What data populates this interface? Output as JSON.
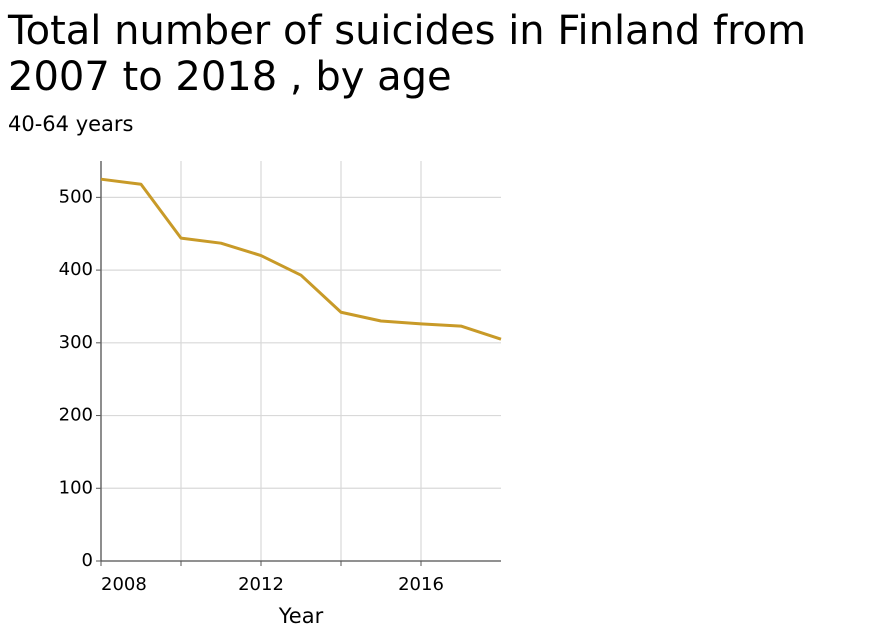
{
  "chart_data": {
    "type": "line",
    "title": "Total number of suicides in Finland from 2007 to 2018 , by age",
    "subtitle": "40-64 years",
    "x_label": "Year",
    "x": [
      2008,
      2009,
      2010,
      2011,
      2012,
      2013,
      2014,
      2015,
      2016,
      2017,
      2018
    ],
    "series": [
      {
        "name": "40-64 years",
        "color": "#c89a28",
        "values": [
          525,
          518,
          444,
          437,
          420,
          393,
          342,
          330,
          326,
          323,
          305
        ]
      }
    ],
    "xlim": [
      2008,
      2018
    ],
    "xticks": [
      2008,
      {
        "value": 2010,
        "label": null
      },
      2012,
      {
        "value": 2014,
        "label": null
      },
      2016
    ],
    "ylim": [
      0,
      550
    ],
    "yticks": [
      0,
      100,
      200,
      300,
      400,
      500
    ],
    "grid": true
  }
}
